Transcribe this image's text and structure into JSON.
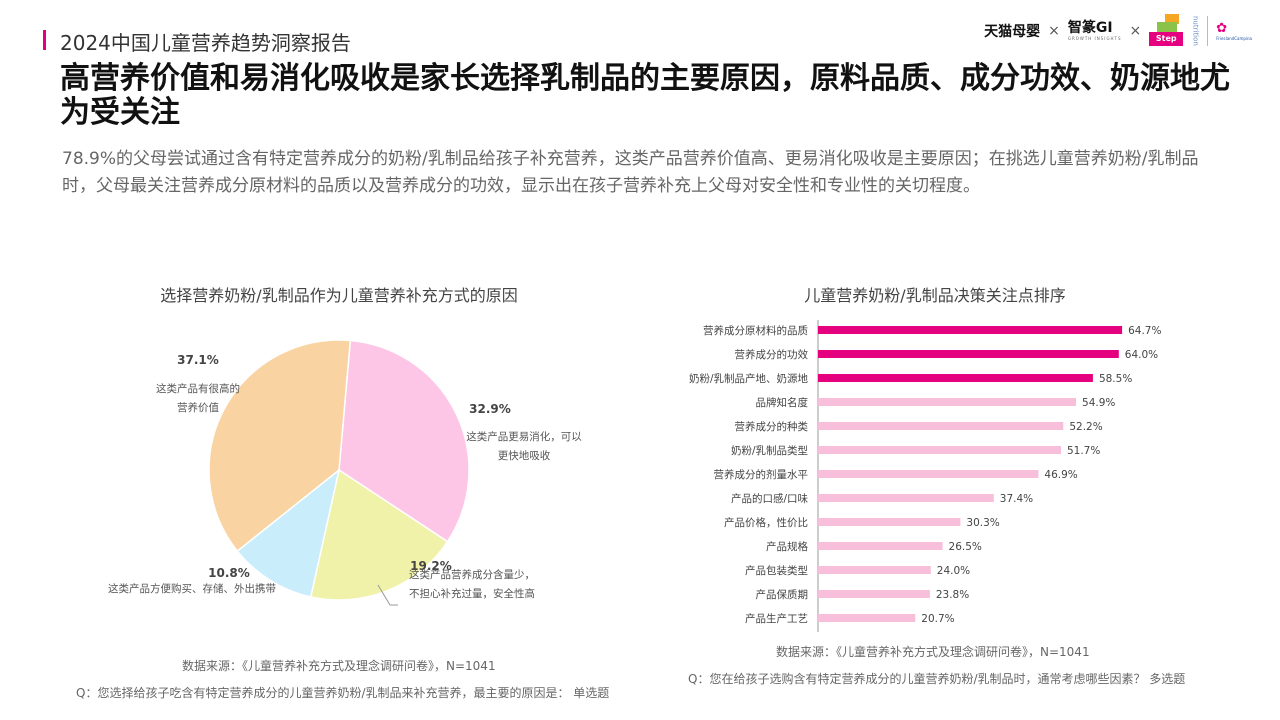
{
  "header": {
    "report_title": "2024中国儿童营养趋势洞察报告",
    "logos": {
      "tmall": "天猫母婴",
      "separator": "×",
      "zhizhuan": "智篆GI",
      "zhizhuan_sub": "GROWTH INSIGHTS",
      "stepup": "Step Up",
      "nutrition": "nutrition",
      "frieslandcampina": "FrieslandCampina"
    }
  },
  "headline": "高营养价值和易消化吸收是家长选择乳制品的主要原因，原料品质、成分功效、奶源地尤为受关注",
  "summary": "78.9%的父母尝试通过含有特定营养成分的奶粉/乳制品给孩子补充营养，这类产品营养价值高、更易消化吸收是主要原因；在挑选儿童营养奶粉/乳制品时，父母最关注营养成分原材料的品质以及营养成分的功效，显示出在孩子营养补充上父母对安全性和专业性的关切程度。",
  "colors": {
    "accent": "#e4007f",
    "bar_highlight": "#e4007f",
    "bar_normal": "#f7bfd9",
    "pie_orange": "#fad3a3",
    "pie_pink": "#fdc6e7",
    "pie_yellow": "#eff2a8",
    "pie_blue": "#c9edfb"
  },
  "chart_data": [
    {
      "type": "pie",
      "title": "选择营养奶粉/乳制品作为儿童营养补充方式的原因",
      "slices": [
        {
          "label_lines": [
            "这类产品有很高的",
            "营养价值"
          ],
          "value": 37.1,
          "display": "37.1%",
          "color": "#fad3a3"
        },
        {
          "label_lines": [
            "这类产品更易消化，可以",
            "更快地吸收"
          ],
          "value": 32.9,
          "display": "32.9%",
          "color": "#fdc6e7"
        },
        {
          "label_lines": [
            "这类产品营养成分含量少，",
            "不担心补充过量，安全性高"
          ],
          "value": 19.2,
          "display": "19.2%",
          "color": "#eff2a8"
        },
        {
          "label_lines": [
            "这类产品方便购买、存储、外出携带"
          ],
          "value": 10.8,
          "display": "10.8%",
          "color": "#c9edfb"
        }
      ],
      "source": "数据来源：《儿童营养补充方式及理念调研问卷》，N=1041",
      "question": "Q：您选择给孩子吃含有特定营养成分的儿童营养奶粉/乳制品来补充营养，最主要的原因是：  单选题"
    },
    {
      "type": "bar",
      "orientation": "horizontal",
      "title": "儿童营养奶粉/乳制品决策关注点排序",
      "categories": [
        "营养成分原材料的品质",
        "营养成分的功效",
        "奶粉/乳制品产地、奶源地",
        "品牌知名度",
        "营养成分的种类",
        "奶粉/乳制品类型",
        "营养成分的剂量水平",
        "产品的口感/口味",
        "产品价格，性价比",
        "产品规格",
        "产品包装类型",
        "产品保质期",
        "产品生产工艺"
      ],
      "values": [
        64.7,
        64.0,
        58.5,
        54.9,
        52.2,
        51.7,
        46.9,
        37.4,
        30.3,
        26.5,
        24.0,
        23.8,
        20.7
      ],
      "value_labels": [
        "64.7%",
        "64.0%",
        "58.5%",
        "54.9%",
        "52.2%",
        "51.7%",
        "46.9%",
        "37.4%",
        "30.3%",
        "26.5%",
        "24.0%",
        "23.8%",
        "20.7%"
      ],
      "highlighted": [
        true,
        true,
        true,
        false,
        false,
        false,
        false,
        false,
        false,
        false,
        false,
        false,
        false
      ],
      "xlim": [
        0,
        100
      ],
      "unit": "%",
      "source": "数据来源：《儿童营养补充方式及理念调研问卷》，N=1041",
      "question": "Q：您在给孩子选购含有特定营养成分的儿童营养奶粉/乳制品时，通常考虑哪些因素？  多选题"
    }
  ]
}
